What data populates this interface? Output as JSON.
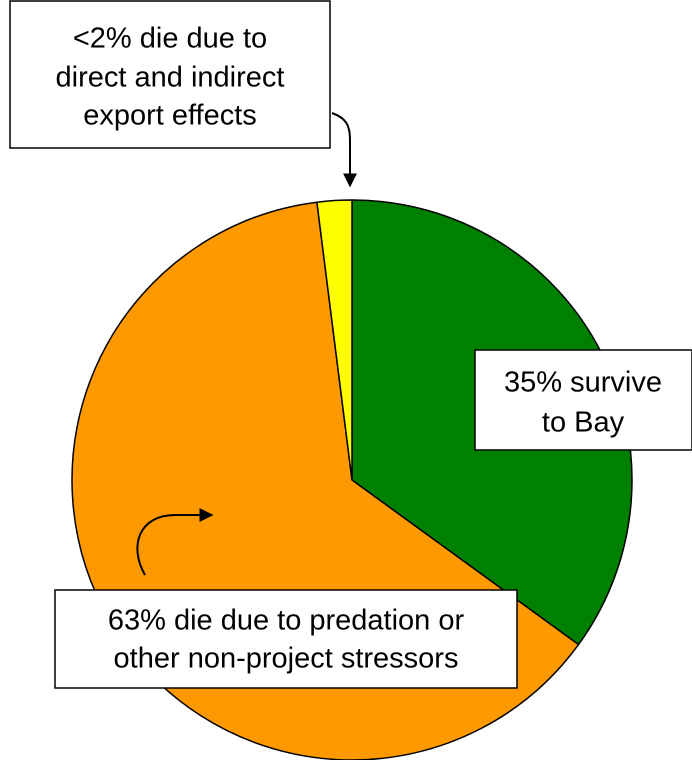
{
  "chart_data": {
    "type": "pie",
    "values": [
      35,
      63,
      2
    ],
    "colors": [
      "#008000",
      "#ff9900",
      "#ffff00"
    ],
    "labels": [
      [
        "35% survive",
        "to Bay"
      ],
      [
        "63% die due to predation or",
        "other non-project stressors"
      ],
      [
        "<2% die due to",
        "direct and indirect",
        "export effects"
      ]
    ]
  }
}
